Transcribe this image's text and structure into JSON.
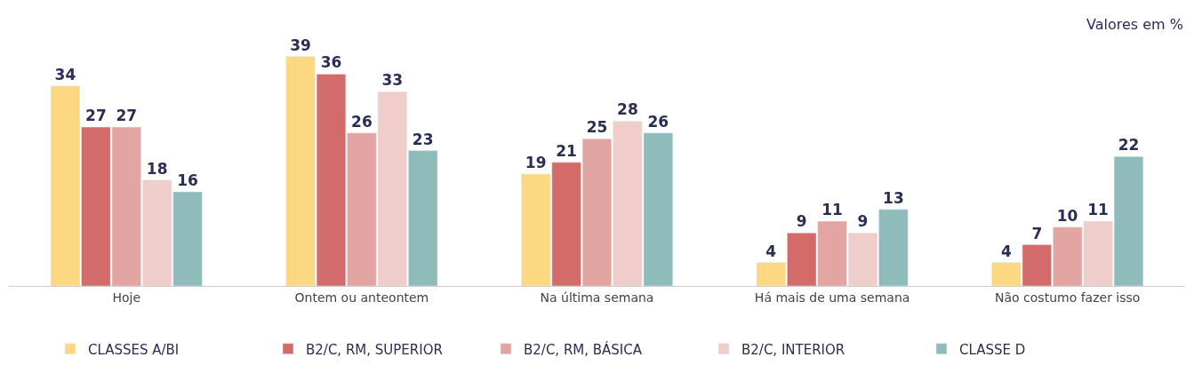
{
  "chart_data": {
    "type": "bar",
    "categories": [
      "Hoje",
      "Ontem ou anteontem",
      "Na última semana",
      "Há mais de uma semana",
      "Não costumo fazer isso"
    ],
    "series": [
      {
        "name": "CLASSES A/BI",
        "color": "#fdd882",
        "values": [
          34,
          39,
          19,
          4,
          4
        ]
      },
      {
        "name": "B2/C, RM, SUPERIOR",
        "color": "#d46b6b",
        "values": [
          27,
          36,
          21,
          9,
          7
        ]
      },
      {
        "name": "B2/C, RM, BÁSICA",
        "color": "#e2a5a1",
        "values": [
          27,
          26,
          25,
          11,
          10
        ]
      },
      {
        "name": "B2/C, INTERIOR",
        "color": "#efcdca",
        "values": [
          18,
          33,
          28,
          9,
          11
        ]
      },
      {
        "name": "CLASSE D",
        "color": "#8fbbbb",
        "values": [
          16,
          23,
          26,
          13,
          22
        ]
      }
    ],
    "data_labels": true,
    "legend": "bottom",
    "annotations": [
      "Valores em %"
    ]
  }
}
